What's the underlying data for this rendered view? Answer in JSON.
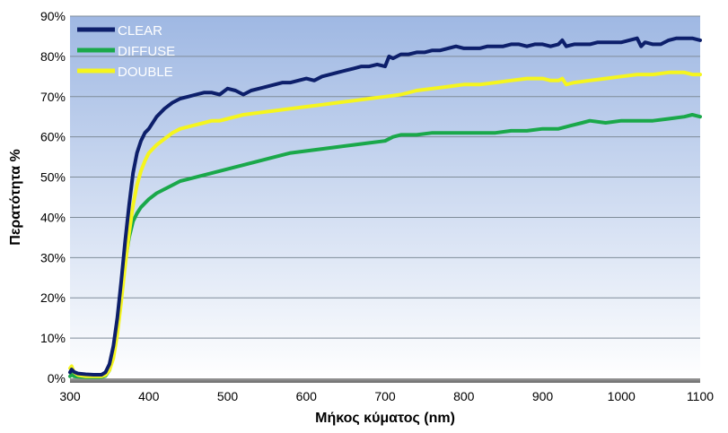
{
  "chart_data": {
    "type": "line",
    "title": "",
    "xlabel": "Μήκος κύματος (nm)",
    "ylabel": "Περατότητα %",
    "xlim": [
      300,
      1100
    ],
    "ylim": [
      0,
      90
    ],
    "x_ticks": [
      300,
      400,
      500,
      600,
      700,
      800,
      900,
      1000,
      1100
    ],
    "y_ticks": [
      0,
      10,
      20,
      30,
      40,
      50,
      60,
      70,
      80,
      90
    ],
    "y_tick_labels": [
      "0%",
      "10%",
      "20%",
      "30%",
      "40%",
      "50%",
      "60%",
      "70%",
      "80%",
      "90%"
    ],
    "grid": "horizontal",
    "legend_position": "top-left",
    "series": [
      {
        "name": "CLEAR",
        "color": "#0d1f6b",
        "x": [
          300,
          302,
          305,
          310,
          320,
          330,
          340,
          345,
          350,
          355,
          360,
          365,
          370,
          375,
          380,
          385,
          390,
          395,
          400,
          410,
          420,
          430,
          440,
          450,
          460,
          470,
          480,
          490,
          500,
          510,
          520,
          530,
          540,
          550,
          560,
          570,
          580,
          590,
          600,
          610,
          620,
          630,
          640,
          650,
          660,
          670,
          680,
          690,
          700,
          705,
          710,
          720,
          730,
          740,
          750,
          760,
          770,
          780,
          790,
          800,
          810,
          820,
          830,
          840,
          850,
          860,
          870,
          880,
          890,
          900,
          910,
          920,
          925,
          930,
          940,
          950,
          960,
          970,
          980,
          990,
          1000,
          1010,
          1020,
          1025,
          1030,
          1040,
          1050,
          1060,
          1070,
          1080,
          1090,
          1100
        ],
        "y": [
          1.5,
          2.2,
          1.6,
          1.2,
          1.0,
          0.9,
          0.9,
          1.5,
          3.5,
          8,
          15,
          24,
          34,
          43,
          51,
          56,
          59,
          61,
          62,
          65,
          67,
          68.5,
          69.5,
          70,
          70.5,
          71,
          71,
          70.5,
          72,
          71.5,
          70.5,
          71.5,
          72,
          72.5,
          73,
          73.5,
          73.5,
          74,
          74.5,
          74,
          75,
          75.5,
          76,
          76.5,
          77,
          77.5,
          77.5,
          78,
          77.5,
          80,
          79.5,
          80.5,
          80.5,
          81,
          81,
          81.5,
          81.5,
          82,
          82.5,
          82,
          82,
          82,
          82.5,
          82.5,
          82.5,
          83,
          83,
          82.5,
          83,
          83,
          82.5,
          83,
          84,
          82.5,
          83,
          83,
          83,
          83.5,
          83.5,
          83.5,
          83.5,
          84,
          84.5,
          82.5,
          83.5,
          83,
          83,
          84,
          84.5,
          84.5,
          84.5,
          84
        ]
      },
      {
        "name": "DIFFUSE",
        "color": "#1aa84a",
        "x": [
          300,
          302,
          305,
          310,
          320,
          330,
          340,
          345,
          350,
          355,
          360,
          365,
          370,
          375,
          380,
          385,
          390,
          395,
          400,
          410,
          420,
          430,
          440,
          450,
          460,
          470,
          480,
          490,
          500,
          520,
          540,
          560,
          580,
          600,
          620,
          640,
          660,
          680,
          700,
          710,
          720,
          740,
          760,
          780,
          800,
          820,
          840,
          860,
          880,
          900,
          910,
          920,
          930,
          940,
          950,
          960,
          980,
          1000,
          1020,
          1040,
          1060,
          1080,
          1090,
          1100
        ],
        "y": [
          0.5,
          1.0,
          0.5,
          0.4,
          0.3,
          0.3,
          0.3,
          0.6,
          2,
          6,
          13,
          21,
          29,
          35,
          39,
          41,
          42.5,
          43.5,
          44.5,
          46,
          47,
          48,
          49,
          49.5,
          50,
          50.5,
          51,
          51.5,
          52,
          53,
          54,
          55,
          56,
          56.5,
          57,
          57.5,
          58,
          58.5,
          59,
          60,
          60.5,
          60.5,
          61,
          61,
          61,
          61,
          61,
          61.5,
          61.5,
          62,
          62,
          62,
          62.5,
          63,
          63.5,
          64,
          63.5,
          64,
          64,
          64,
          64.5,
          65,
          65.5,
          65
        ]
      },
      {
        "name": "DOUBLE",
        "color": "#f5f51e",
        "x": [
          300,
          302,
          305,
          310,
          320,
          330,
          340,
          345,
          350,
          355,
          360,
          365,
          370,
          375,
          380,
          385,
          390,
          395,
          400,
          410,
          420,
          430,
          440,
          450,
          460,
          470,
          480,
          490,
          500,
          520,
          540,
          560,
          580,
          600,
          620,
          640,
          660,
          680,
          700,
          720,
          740,
          760,
          780,
          800,
          820,
          840,
          860,
          880,
          900,
          910,
          920,
          925,
          930,
          940,
          960,
          980,
          1000,
          1020,
          1040,
          1060,
          1080,
          1090,
          1100
        ],
        "y": [
          2.5,
          3,
          1.5,
          0.8,
          0.5,
          0.5,
          0.5,
          0.8,
          2,
          5,
          11,
          19,
          28,
          36,
          43,
          48,
          51.5,
          54,
          56,
          58,
          59.5,
          61,
          62,
          62.5,
          63,
          63.5,
          64,
          64,
          64.5,
          65.5,
          66,
          66.5,
          67,
          67.5,
          68,
          68.5,
          69,
          69.5,
          70,
          70.5,
          71.5,
          72,
          72.5,
          73,
          73,
          73.5,
          74,
          74.5,
          74.5,
          74,
          74,
          74.5,
          73,
          73.5,
          74,
          74.5,
          75,
          75.5,
          75.5,
          76,
          76,
          75.5,
          75.5
        ]
      }
    ]
  }
}
